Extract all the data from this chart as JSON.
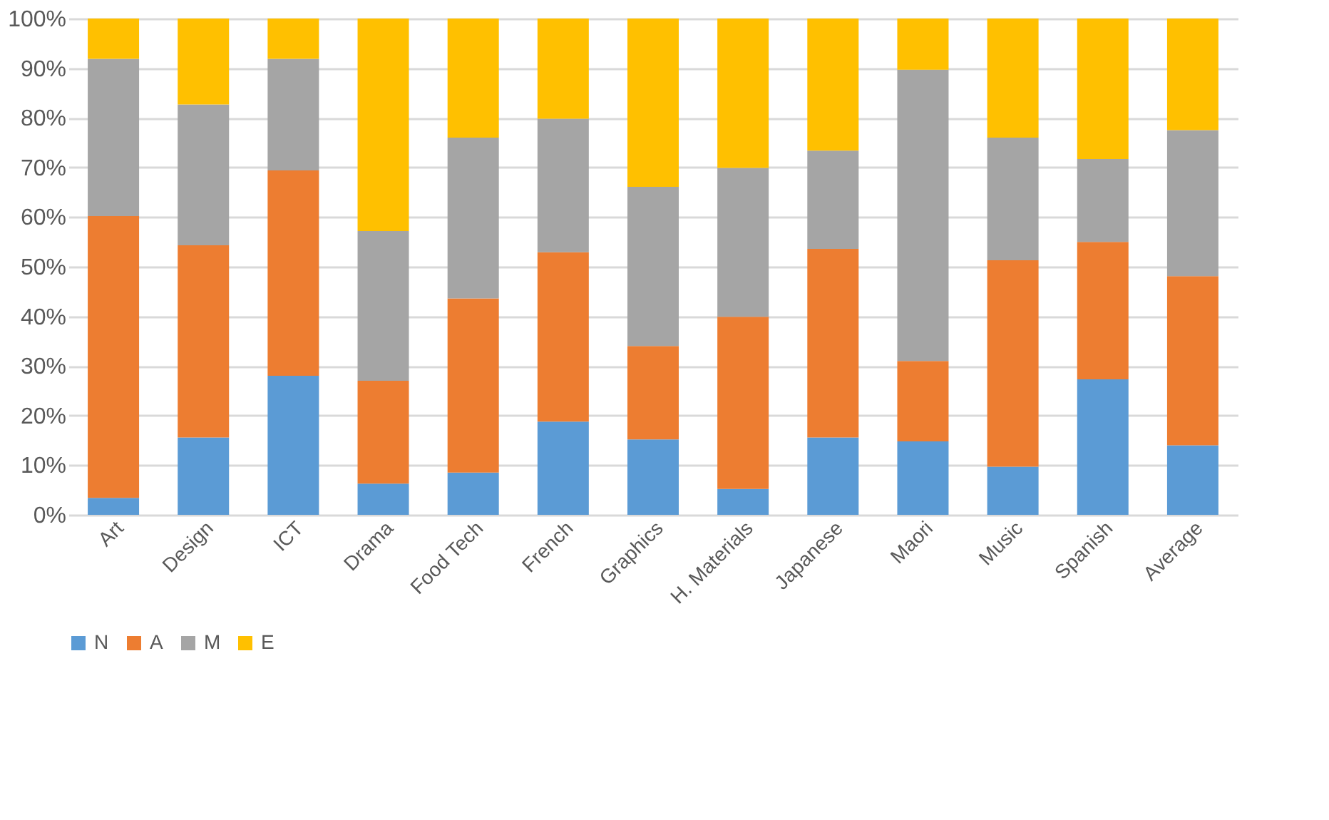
{
  "chart_data": {
    "type": "bar",
    "stacked": true,
    "categories": [
      "Art",
      "Design",
      "ICT",
      "Drama",
      "Food Tech",
      "French",
      "Graphics",
      "H. Materials",
      "Japanese",
      "Maori",
      "Music",
      "Spanish",
      "Average"
    ],
    "series": [
      {
        "name": "N",
        "color": "#5b9bd5",
        "values": [
          3.4,
          15.6,
          28.0,
          6.3,
          8.5,
          18.8,
          15.2,
          5.2,
          15.6,
          14.8,
          9.7,
          27.3,
          14.0
        ]
      },
      {
        "name": "A",
        "color": "#ed7d31",
        "values": [
          56.8,
          38.7,
          41.4,
          20.7,
          35.1,
          34.1,
          18.8,
          34.7,
          38.0,
          16.2,
          41.6,
          27.7,
          34.1
        ]
      },
      {
        "name": "M",
        "color": "#a5a5a5",
        "values": [
          31.7,
          28.4,
          22.5,
          30.2,
          32.4,
          26.9,
          32.1,
          30.0,
          19.8,
          58.7,
          24.7,
          16.7,
          29.4
        ]
      },
      {
        "name": "E",
        "color": "#ffc000",
        "values": [
          8.1,
          17.3,
          8.1,
          42.8,
          24.0,
          20.2,
          33.9,
          30.1,
          26.6,
          10.3,
          24.0,
          28.3,
          22.5
        ]
      }
    ],
    "ylim": [
      0,
      100
    ],
    "yticks": [
      {
        "value": 0,
        "label": "0%"
      },
      {
        "value": 10,
        "label": "10%"
      },
      {
        "value": 20,
        "label": "20%"
      },
      {
        "value": 30,
        "label": "30%"
      },
      {
        "value": 40,
        "label": "40%"
      },
      {
        "value": 50,
        "label": "50%"
      },
      {
        "value": 60,
        "label": "60%"
      },
      {
        "value": 70,
        "label": "70%"
      },
      {
        "value": 80,
        "label": "80%"
      },
      {
        "value": 90,
        "label": "90%"
      },
      {
        "value": 100,
        "label": "100%"
      }
    ],
    "grid": "y",
    "legend": "bottom"
  }
}
